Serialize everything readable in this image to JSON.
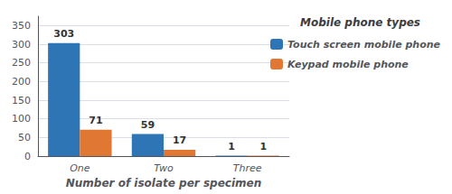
{
  "chart_data": {
    "type": "bar",
    "categories": [
      "One",
      "Two",
      "Three"
    ],
    "series": [
      {
        "name": "Touch screen mobile phone",
        "color": "#2E75B6",
        "values": [
          303,
          59,
          1
        ]
      },
      {
        "name": "Keypad mobile phone",
        "color": "#E07833",
        "values": [
          71,
          17,
          1
        ]
      }
    ],
    "xlabel": "Number of isolate per specimen",
    "legend_title": "Mobile phone types",
    "ylim": [
      0,
      375
    ],
    "yticks": [
      0,
      50,
      100,
      150,
      200,
      250,
      300,
      350
    ],
    "grid": true,
    "legend": "right",
    "data_labels": true
  }
}
